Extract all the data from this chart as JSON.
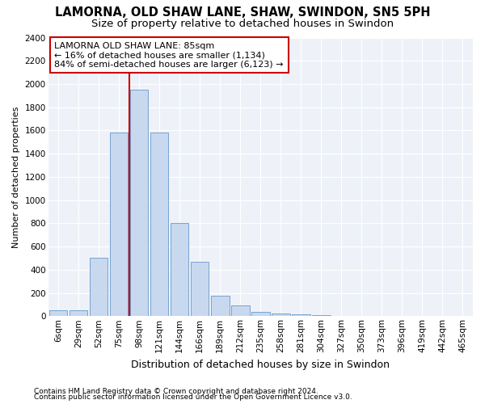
{
  "title": "LAMORNA, OLD SHAW LANE, SHAW, SWINDON, SN5 5PH",
  "subtitle": "Size of property relative to detached houses in Swindon",
  "xlabel": "Distribution of detached houses by size in Swindon",
  "ylabel": "Number of detached properties",
  "categories": [
    "6sqm",
    "29sqm",
    "52sqm",
    "75sqm",
    "98sqm",
    "121sqm",
    "144sqm",
    "166sqm",
    "189sqm",
    "212sqm",
    "235sqm",
    "258sqm",
    "281sqm",
    "304sqm",
    "327sqm",
    "350sqm",
    "373sqm",
    "396sqm",
    "419sqm",
    "442sqm",
    "465sqm"
  ],
  "values": [
    50,
    50,
    500,
    1580,
    1950,
    1580,
    800,
    470,
    175,
    90,
    35,
    25,
    15,
    10,
    0,
    0,
    0,
    0,
    0,
    0,
    0
  ],
  "bar_color": "#c8d8ee",
  "bar_edge_color": "#6699cc",
  "vline_color": "#cc0000",
  "vline_pos": 3.5,
  "annotation_title": "LAMORNA OLD SHAW LANE: 85sqm",
  "annotation_line1": "← 16% of detached houses are smaller (1,134)",
  "annotation_line2": "84% of semi-detached houses are larger (6,123) →",
  "annotation_box_color": "#cc0000",
  "ylim": [
    0,
    2400
  ],
  "yticks": [
    0,
    200,
    400,
    600,
    800,
    1000,
    1200,
    1400,
    1600,
    1800,
    2000,
    2200,
    2400
  ],
  "footnote1": "Contains HM Land Registry data © Crown copyright and database right 2024.",
  "footnote2": "Contains public sector information licensed under the Open Government Licence v3.0.",
  "plot_bg_color": "#eef2f8",
  "fig_bg_color": "#ffffff",
  "grid_color": "#ffffff",
  "title_fontsize": 10.5,
  "subtitle_fontsize": 9.5,
  "ylabel_fontsize": 8,
  "xlabel_fontsize": 9,
  "tick_fontsize": 7.5,
  "annot_fontsize": 8,
  "footnote_fontsize": 6.5
}
